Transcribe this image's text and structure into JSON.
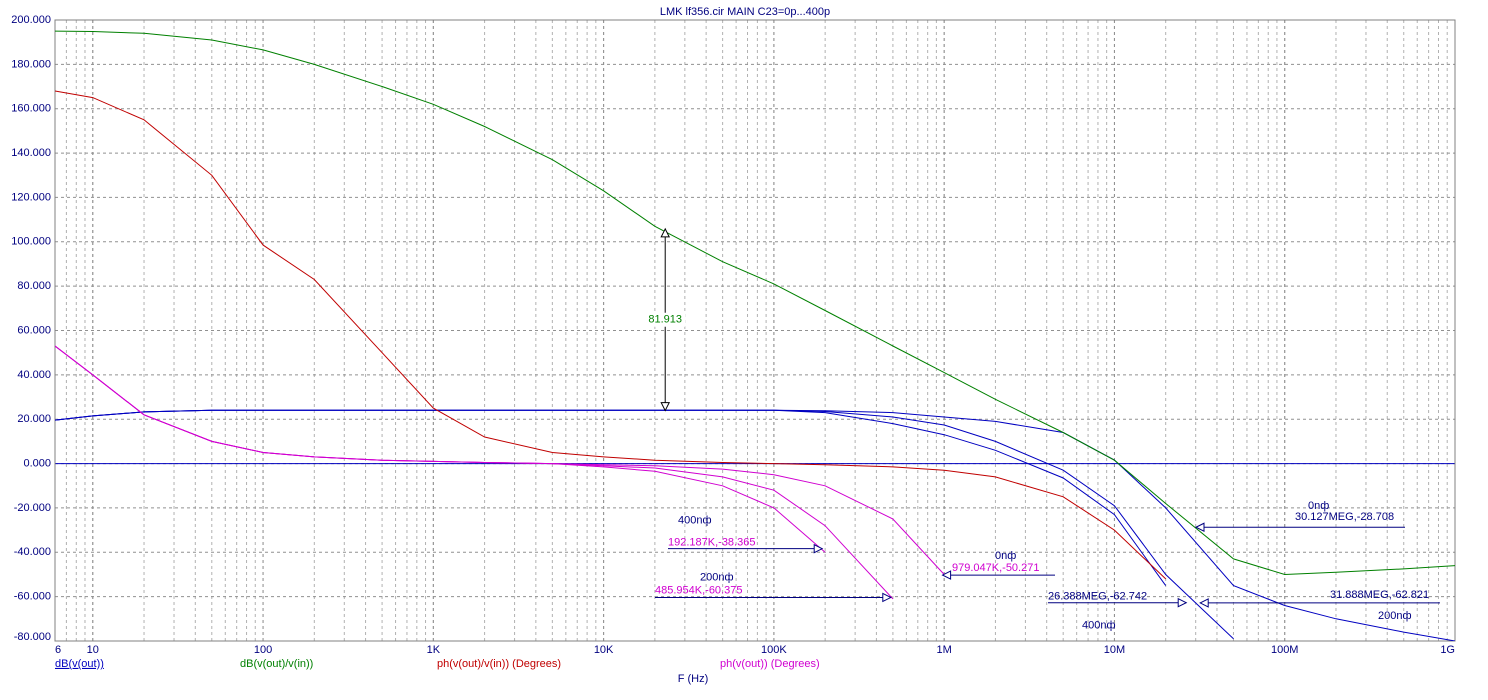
{
  "chart_data": {
    "type": "line",
    "title": "LMK lf356.cir MAIN C23=0p...400p",
    "x_label": "F (Hz)",
    "log_x": true,
    "grid": true,
    "minor_grid": true,
    "xlim": [
      6,
      1000000000
    ],
    "xticks": [
      6,
      10,
      100,
      {
        "value": 1000,
        "label": "1K"
      },
      {
        "value": 10000,
        "label": "10K"
      },
      {
        "value": 100000,
        "label": "100K"
      },
      {
        "value": 1000000,
        "label": "1M"
      },
      {
        "value": 10000000,
        "label": "10M"
      },
      {
        "value": 100000000,
        "label": "100M"
      },
      {
        "value": 1000000000,
        "label": "1G"
      }
    ],
    "ylim": [
      -80,
      200
    ],
    "yticks": [
      {
        "value": -80,
        "label": "-80.000"
      },
      {
        "value": -60,
        "label": "-60.000"
      },
      {
        "value": -40,
        "label": "-40.000"
      },
      {
        "value": -20,
        "label": "-20.000"
      },
      {
        "value": 0,
        "label": "0.000"
      },
      {
        "value": 20,
        "label": "20.000"
      },
      {
        "value": 40,
        "label": "40.000"
      },
      {
        "value": 60,
        "label": "60.000"
      },
      {
        "value": 80,
        "label": "80.000"
      },
      {
        "value": 100,
        "label": "100.000"
      },
      {
        "value": 120,
        "label": "120.000"
      },
      {
        "value": 140,
        "label": "140.000"
      },
      {
        "value": 160,
        "label": "160.000"
      },
      {
        "value": 180,
        "label": "180.000"
      },
      {
        "value": 200,
        "label": "200.000"
      }
    ],
    "x": [
      6,
      10,
      20,
      50,
      100,
      200,
      500,
      1000,
      2000,
      5000,
      10000,
      20000,
      50000,
      100000,
      200000,
      500000,
      1000000,
      2000000,
      5000000,
      10000000,
      20000000,
      50000000,
      100000000,
      200000000,
      500000000,
      1000000000
    ],
    "series": [
      {
        "name": "dB(v(out))",
        "color": "#0000c0",
        "curves": [
          [
            19.6,
            21.5,
            23.3,
            24,
            24,
            24,
            24,
            24,
            24,
            24,
            24,
            24,
            24,
            24,
            23.8,
            23,
            21,
            19,
            14,
            1.6,
            -20,
            -55,
            -64,
            -70,
            -76,
            -80
          ],
          [
            19.6,
            21.5,
            23.3,
            24,
            24,
            24,
            24,
            24,
            24,
            24,
            24,
            24,
            24,
            24,
            23.5,
            21,
            17.4,
            10,
            -3,
            -19,
            -50,
            -79,
            null,
            null,
            null,
            null
          ],
          [
            19.6,
            21.5,
            23.3,
            24,
            24,
            24,
            24,
            24,
            24,
            24,
            24,
            24,
            24,
            24,
            23,
            18,
            13,
            6,
            -6.5,
            -23,
            -55,
            null,
            null,
            null,
            null,
            null
          ]
        ]
      },
      {
        "name": "dB(v(out)/v(in))",
        "color": "#008000",
        "curves": [
          [
            195,
            194.8,
            194,
            191,
            186.5,
            180,
            170,
            162,
            152,
            137,
            123,
            107,
            91,
            81,
            69,
            53,
            41,
            29,
            14,
            1.5,
            -18,
            -43,
            -50,
            -49,
            -47.5,
            -46
          ]
        ]
      },
      {
        "name": "ph(v(out)/v(in)) (Degrees)",
        "color": "#c00000",
        "curves": [
          [
            168,
            165,
            155,
            130,
            98.5,
            83,
            50,
            25,
            12,
            5,
            3,
            1.5,
            0.5,
            0,
            -0.5,
            -1.5,
            -3,
            -6,
            -15,
            -30,
            -52,
            null,
            null,
            null,
            null,
            null
          ]
        ]
      },
      {
        "name": "ph(v(out)) (Degrees)",
        "color": "#d000d0",
        "curves": [
          [
            53,
            40,
            22,
            10,
            5,
            3,
            1.5,
            1,
            0.5,
            0,
            -0.5,
            -1,
            -2.5,
            -5,
            -10,
            -25,
            -50,
            null,
            null,
            null,
            null,
            null,
            null,
            null,
            null,
            null
          ],
          [
            53,
            40,
            22,
            10,
            5,
            3,
            1.5,
            1,
            0.5,
            0,
            -1,
            -2,
            -6,
            -12,
            -28,
            -61,
            null,
            null,
            null,
            null,
            null,
            null,
            null,
            null,
            null,
            null
          ],
          [
            53,
            40,
            22,
            10,
            5,
            3,
            1.5,
            1,
            0.5,
            0,
            -1.5,
            -3.5,
            -10,
            -20,
            -40,
            null,
            null,
            null,
            null,
            null,
            null,
            null,
            null,
            null,
            null,
            null
          ]
        ]
      }
    ],
    "markers": [
      {
        "step": "400nф",
        "label": "192.187K,-38.365",
        "x": 192187,
        "y": -38.365,
        "color": "#d000d0"
      },
      {
        "step": "200nф",
        "label": "485.954K,-60.375",
        "x": 485954,
        "y": -60.375,
        "color": "#d000d0"
      },
      {
        "step": "0nф",
        "label": "979.047K,-50.271",
        "x": 979047,
        "y": -50.271,
        "color": "#d000d0"
      },
      {
        "step": "0nф",
        "label": "30.127MEG,-28.708",
        "x": 30127000,
        "y": -28.708,
        "color": "#000080"
      },
      {
        "step": "400nф",
        "label": "26.388MEG,-62.742",
        "x": 26388000,
        "y": -62.742,
        "color": "#000080"
      },
      {
        "step": "200nф",
        "label": "31.888MEG,-62.821",
        "x": 31888000,
        "y": -62.821,
        "color": "#000080"
      }
    ],
    "measurement": {
      "label": "81.913",
      "x": 23000,
      "y1": 23.9,
      "y2": 105.8,
      "color": "#008000"
    }
  }
}
